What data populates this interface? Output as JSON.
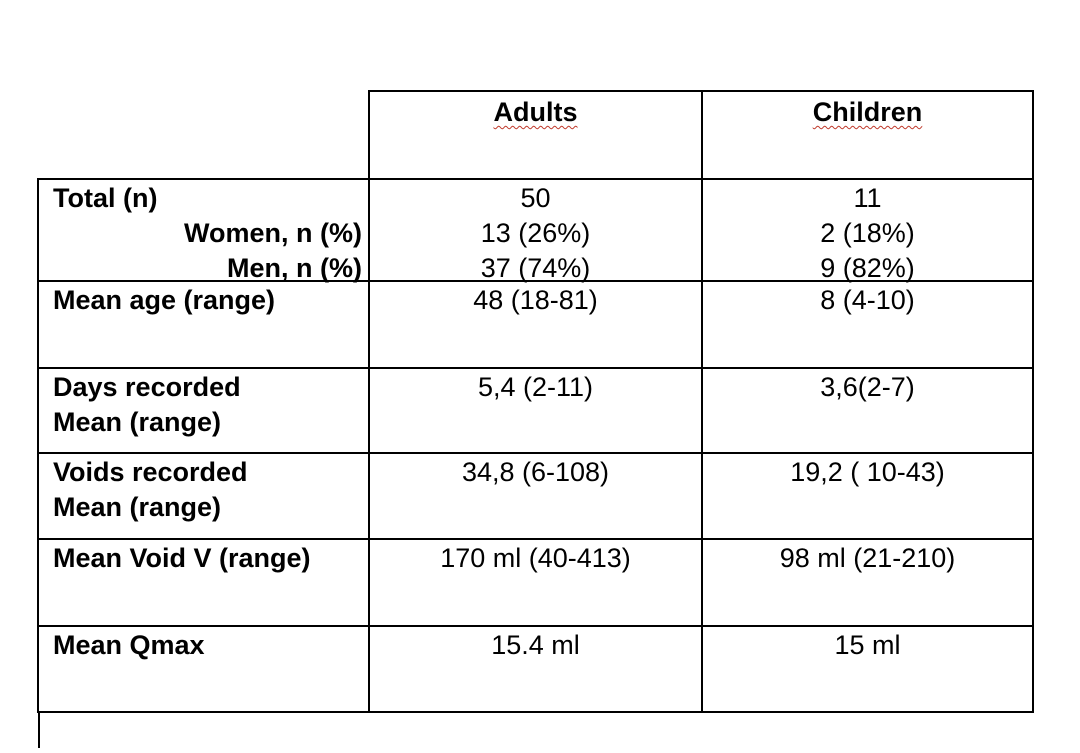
{
  "table": {
    "headers": {
      "adults": "Adults",
      "children": "Children"
    },
    "rows": [
      {
        "label": [
          "Total (n)",
          "Women, n (%)",
          "Men, n (%)"
        ],
        "adults": [
          "50",
          "13 (26%)",
          "37 (74%)"
        ],
        "children": [
          "11",
          "2 (18%)",
          "9 (82%)"
        ]
      },
      {
        "label": [
          "Mean age (range)"
        ],
        "adults": [
          "48 (18-81)"
        ],
        "children": [
          "8 (4-10)"
        ]
      },
      {
        "label": [
          "Days recorded",
          "Mean (range)"
        ],
        "adults": [
          "5,4 (2-11)"
        ],
        "children": [
          "3,6(2-7)"
        ]
      },
      {
        "label": [
          "Voids recorded",
          "Mean (range)"
        ],
        "adults": [
          "34,8 (6-108)"
        ],
        "children": [
          "19,2 ( 10-43)"
        ]
      },
      {
        "label": [
          "Mean Void V (range)"
        ],
        "adults": [
          "170 ml (40-413)"
        ],
        "children": [
          "98 ml (21-210)"
        ]
      },
      {
        "label": [
          "Mean Qmax"
        ],
        "adults": [
          "15.4 ml"
        ],
        "children": [
          "15 ml"
        ]
      }
    ]
  }
}
